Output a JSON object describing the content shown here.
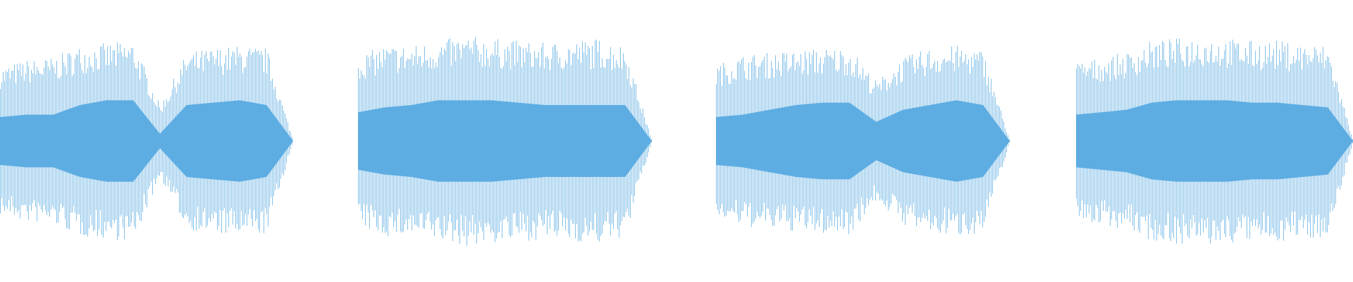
{
  "waveform": {
    "color": "#5dade2",
    "clips": [
      {
        "outer": [
          0.62,
          0.68,
          0.7,
          0.8,
          0.82,
          0.84,
          0.3,
          0.74,
          0.78,
          0.8,
          0.78,
          0.0
        ],
        "core": [
          0.2,
          0.22,
          0.22,
          0.3,
          0.34,
          0.34,
          0.06,
          0.3,
          0.32,
          0.34,
          0.3,
          0.0
        ]
      },
      {
        "outer": [
          0.72,
          0.8,
          0.8,
          0.84,
          0.88,
          0.86,
          0.84,
          0.82,
          0.84,
          0.86,
          0.8,
          0.0
        ],
        "core": [
          0.24,
          0.28,
          0.3,
          0.34,
          0.34,
          0.34,
          0.32,
          0.3,
          0.3,
          0.3,
          0.3,
          0.0
        ]
      },
      {
        "outer": [
          0.64,
          0.72,
          0.74,
          0.76,
          0.78,
          0.78,
          0.5,
          0.7,
          0.78,
          0.8,
          0.76,
          0.0
        ],
        "core": [
          0.2,
          0.22,
          0.26,
          0.3,
          0.32,
          0.32,
          0.16,
          0.26,
          0.3,
          0.34,
          0.3,
          0.0
        ]
      },
      {
        "outer": [
          0.66,
          0.7,
          0.74,
          0.84,
          0.86,
          0.88,
          0.86,
          0.84,
          0.84,
          0.82,
          0.8,
          0.0
        ],
        "core": [
          0.22,
          0.24,
          0.26,
          0.32,
          0.34,
          0.34,
          0.34,
          0.32,
          0.32,
          0.3,
          0.28,
          0.0
        ]
      }
    ]
  }
}
